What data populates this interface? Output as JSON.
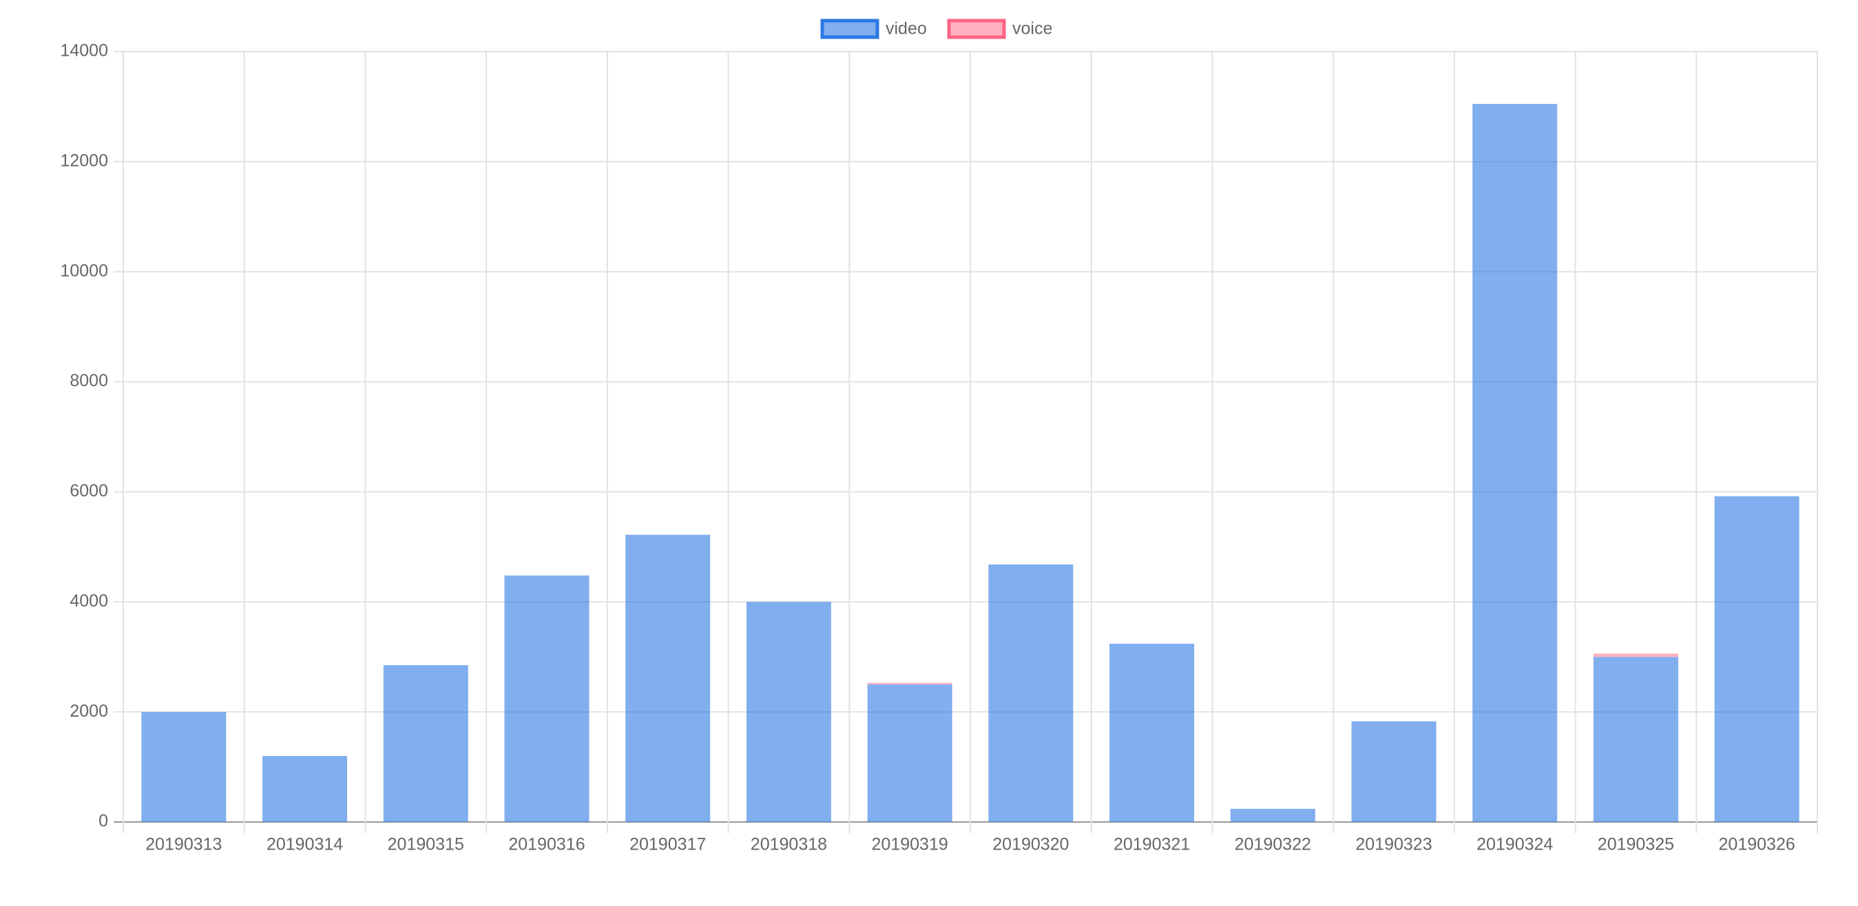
{
  "chart_data": {
    "type": "stacked-bar",
    "categories": [
      "20190313",
      "20190314",
      "20190315",
      "20190316",
      "20190317",
      "20190318",
      "20190319",
      "20190320",
      "20190321",
      "20190322",
      "20190323",
      "20190324",
      "20190325",
      "20190326"
    ],
    "series": [
      {
        "name": "video",
        "color": "#2b78e4",
        "values": [
          2000,
          1200,
          2850,
          4480,
          5220,
          4000,
          2500,
          4680,
          3240,
          240,
          1830,
          13050,
          3000,
          5920
        ]
      },
      {
        "name": "voice",
        "color": "#ff6384",
        "values": [
          0,
          0,
          0,
          0,
          0,
          0,
          30,
          0,
          0,
          0,
          0,
          0,
          60,
          0
        ]
      }
    ],
    "ylim": [
      0,
      14000
    ],
    "yticks": [
      0,
      2000,
      4000,
      6000,
      8000,
      10000,
      12000,
      14000
    ],
    "grid": true,
    "legend": "top"
  }
}
